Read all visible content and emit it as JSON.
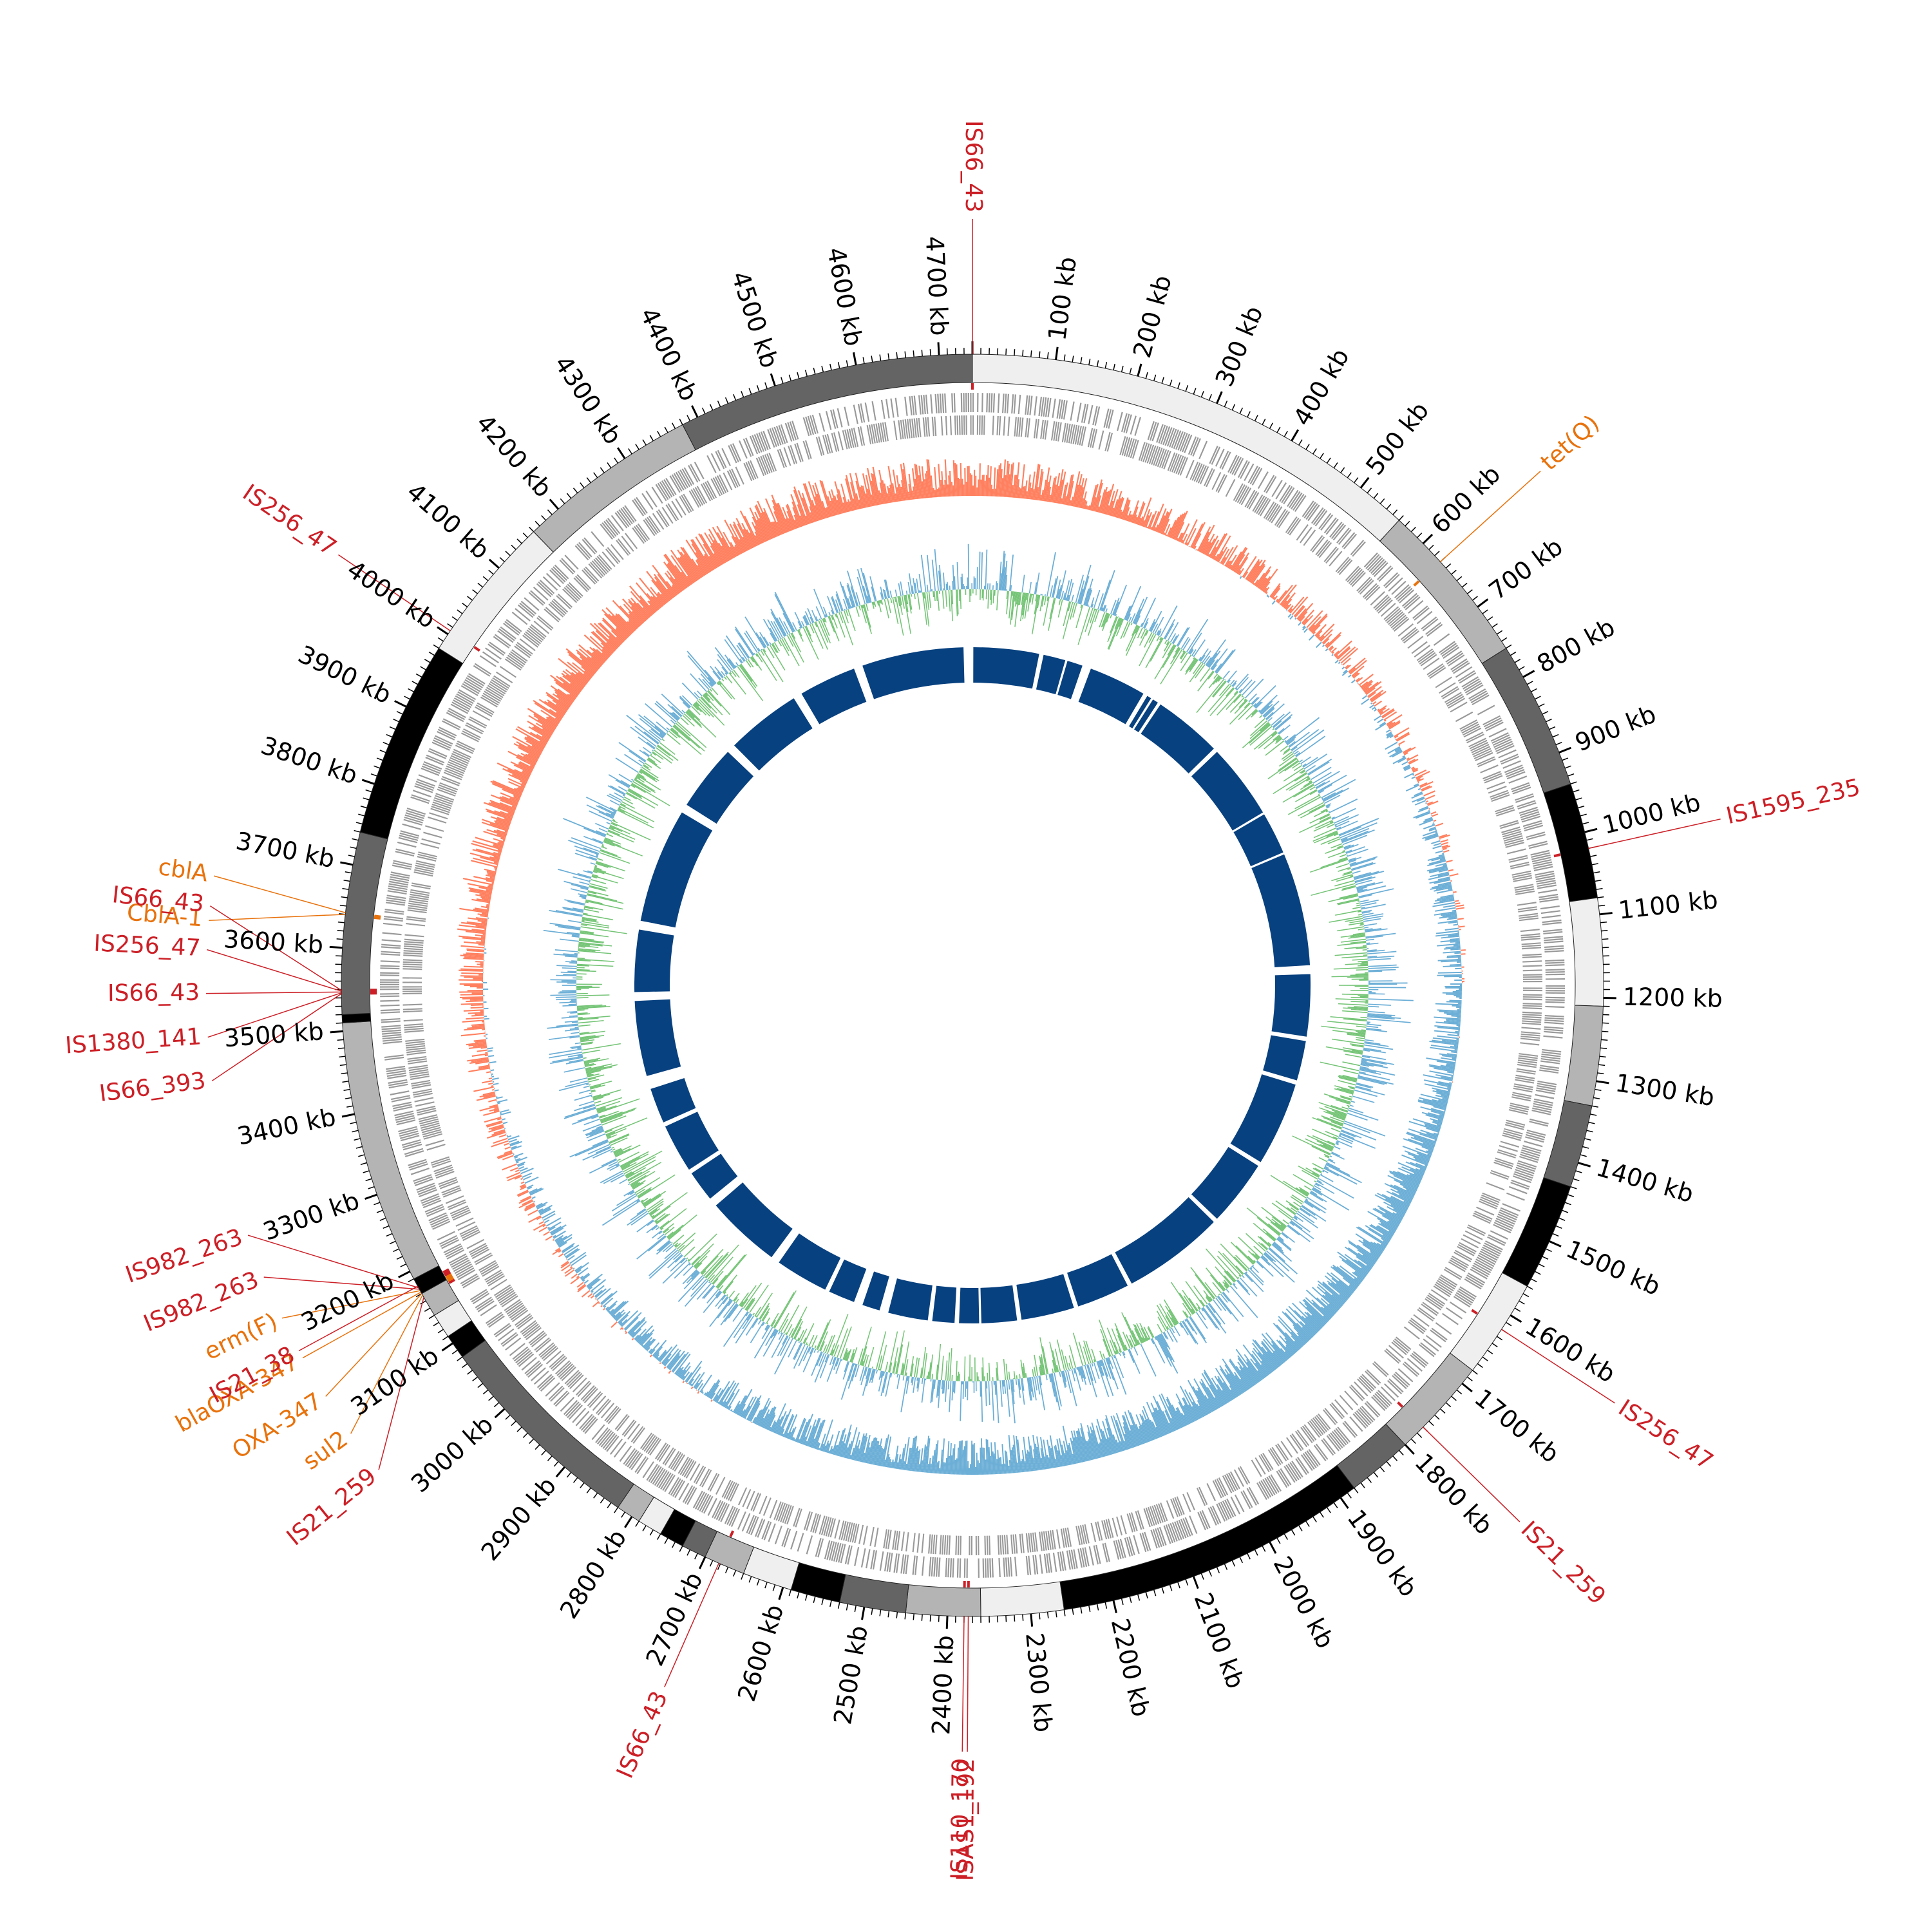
{
  "genome": {
    "total_kb": 4740,
    "unit": "kb"
  },
  "position_labels": [
    "100 kb",
    "200 kb",
    "300 kb",
    "400 kb",
    "500 kb",
    "600 kb",
    "700 kb",
    "800 kb",
    "900 kb",
    "1000 kb",
    "1100 kb",
    "1200 kb",
    "1300 kb",
    "1400 kb",
    "1500 kb",
    "1600 kb",
    "1700 kb",
    "1800 kb",
    "1900 kb",
    "2000 kb",
    "2100 kb",
    "2200 kb",
    "2300 kb",
    "2400 kb",
    "2500 kb",
    "2600 kb",
    "2700 kb",
    "2800 kb",
    "2900 kb",
    "3000 kb",
    "3100 kb",
    "3200 kb",
    "3300 kb",
    "3400 kb",
    "3500 kb",
    "3600 kb",
    "3700 kb",
    "3800 kb",
    "3900 kb",
    "4000 kb",
    "4100 kb",
    "4200 kb",
    "4300 kb",
    "4400 kb",
    "4500 kb",
    "4600 kb",
    "4700 kb"
  ],
  "position_values_kb": [
    100,
    200,
    300,
    400,
    500,
    600,
    700,
    800,
    900,
    1000,
    1100,
    1200,
    1300,
    1400,
    1500,
    1600,
    1700,
    1800,
    1900,
    2000,
    2100,
    2200,
    2300,
    2400,
    2500,
    2600,
    2700,
    2800,
    2900,
    3000,
    3100,
    3200,
    3300,
    3400,
    3500,
    3600,
    3700,
    3800,
    3900,
    4000,
    4100,
    4200,
    4300,
    4400,
    4500,
    4600,
    4700
  ],
  "contigs": [
    {
      "start": 0,
      "end": 560,
      "shade": "#efefef"
    },
    {
      "start": 560,
      "end": 760,
      "shade": "#b4b4b4"
    },
    {
      "start": 760,
      "end": 940,
      "shade": "#646464"
    },
    {
      "start": 940,
      "end": 1080,
      "shade": "#000000"
    },
    {
      "start": 1080,
      "end": 1210,
      "shade": "#efefef"
    },
    {
      "start": 1210,
      "end": 1330,
      "shade": "#b4b4b4"
    },
    {
      "start": 1330,
      "end": 1430,
      "shade": "#646464"
    },
    {
      "start": 1430,
      "end": 1560,
      "shade": "#000000"
    },
    {
      "start": 1560,
      "end": 1680,
      "shade": "#efefef"
    },
    {
      "start": 1680,
      "end": 1800,
      "shade": "#b4b4b4"
    },
    {
      "start": 1800,
      "end": 1880,
      "shade": "#646464"
    },
    {
      "start": 1880,
      "end": 2260,
      "shade": "#000000"
    },
    {
      "start": 2260,
      "end": 2360,
      "shade": "#efefef"
    },
    {
      "start": 2360,
      "end": 2450,
      "shade": "#b4b4b4"
    },
    {
      "start": 2450,
      "end": 2530,
      "shade": "#646464"
    },
    {
      "start": 2530,
      "end": 2590,
      "shade": "#000000"
    },
    {
      "start": 2590,
      "end": 2650,
      "shade": "#efefef"
    },
    {
      "start": 2650,
      "end": 2700,
      "shade": "#b4b4b4"
    },
    {
      "start": 2700,
      "end": 2730,
      "shade": "#646464"
    },
    {
      "start": 2730,
      "end": 2760,
      "shade": "#000000"
    },
    {
      "start": 2760,
      "end": 2790,
      "shade": "#efefef"
    },
    {
      "start": 2790,
      "end": 2820,
      "shade": "#b4b4b4"
    },
    {
      "start": 2820,
      "end": 3080,
      "shade": "#646464"
    },
    {
      "start": 3080,
      "end": 3110,
      "shade": "#000000"
    },
    {
      "start": 3110,
      "end": 3140,
      "shade": "#efefef"
    },
    {
      "start": 3140,
      "end": 3170,
      "shade": "#b4b4b4"
    },
    {
      "start": 3170,
      "end": 3190,
      "shade": "#000000"
    },
    {
      "start": 3190,
      "end": 3510,
      "shade": "#b4b4b4"
    },
    {
      "start": 3510,
      "end": 3520,
      "shade": "#000000"
    },
    {
      "start": 3520,
      "end": 3740,
      "shade": "#646464"
    },
    {
      "start": 3740,
      "end": 3980,
      "shade": "#000000"
    },
    {
      "start": 3980,
      "end": 4160,
      "shade": "#efefef"
    },
    {
      "start": 4160,
      "end": 4380,
      "shade": "#b4b4b4"
    },
    {
      "start": 4380,
      "end": 4740,
      "shade": "#646464"
    }
  ],
  "annotations": [
    {
      "label": "IS66_43",
      "kb": 4740,
      "kind": "is"
    },
    {
      "label": "tet(Q)",
      "kb": 630,
      "kind": "amr"
    },
    {
      "label": "IS1595_235",
      "kb": 1020,
      "kind": "is"
    },
    {
      "label": "IS256_47",
      "kb": 1620,
      "kind": "is"
    },
    {
      "label": "IS21_259",
      "kb": 1770,
      "kind": "is"
    },
    {
      "label": "ISAS1_192",
      "kb": 2375,
      "kind": "is"
    },
    {
      "label": "IS110_170",
      "kb": 2380,
      "kind": "is"
    },
    {
      "label": "IS66_43",
      "kb": 2682,
      "kind": "is"
    },
    {
      "label": "IS21_259",
      "kb": 3165,
      "kind": "is"
    },
    {
      "label": "sul2",
      "kb": 3168,
      "kind": "amr"
    },
    {
      "label": "OXA-347",
      "kb": 3170,
      "kind": "amr"
    },
    {
      "label": "blaOXA-347",
      "kb": 3172,
      "kind": "amr"
    },
    {
      "label": "erm(F)",
      "kb": 3174,
      "kind": "amr"
    },
    {
      "label": "IS982_263",
      "kb": 3176,
      "kind": "is"
    },
    {
      "label": "IS982_263",
      "kb": 3178,
      "kind": "is"
    },
    {
      "label": "IS21_38",
      "kb": 3180,
      "kind": "is"
    },
    {
      "label": "CblA-1",
      "kb": 3640,
      "kind": "amr"
    },
    {
      "label": "cblA",
      "kb": 3642,
      "kind": "amr"
    },
    {
      "label": "IS66_393",
      "kb": 3545,
      "kind": "is"
    },
    {
      "label": "IS1380_141",
      "kb": 3546,
      "kind": "is"
    },
    {
      "label": "IS66_43",
      "kb": 3547,
      "kind": "is"
    },
    {
      "label": "IS256_47",
      "kb": 3548,
      "kind": "is"
    },
    {
      "label": "IS66_43",
      "kb": 3549,
      "kind": "is"
    },
    {
      "label": "IS256_47",
      "kb": 4005,
      "kind": "is"
    }
  ],
  "tracks": {
    "gc_skew_pos_color": "#ff7f5e",
    "gc_skew_neg_color": "#6baed6",
    "gc_content_pos_color": "#74c476",
    "gc_content_neg_color": "#6baed6",
    "cds_color": "#999999",
    "homology_color": "#08417f"
  },
  "colors": {
    "is_element": "#cc1f26",
    "amr_gene": "#e8720c"
  },
  "homology_blocks": [
    [
      2,
      150
    ],
    [
      160,
      210
    ],
    [
      215,
      250
    ],
    [
      270,
      400
    ],
    [
      410,
      420
    ],
    [
      425,
      438
    ],
    [
      445,
      600
    ],
    [
      610,
      780
    ],
    [
      785,
      880
    ],
    [
      885,
      1140
    ],
    [
      1160,
      1300
    ],
    [
      1310,
      1400
    ],
    [
      1410,
      1600
    ],
    [
      1610,
      1760
    ],
    [
      1770,
      2000
    ],
    [
      2010,
      2130
    ],
    [
      2140,
      2260
    ],
    [
      2270,
      2350
    ],
    [
      2355,
      2400
    ],
    [
      2410,
      2460
    ],
    [
      2470,
      2560
    ],
    [
      2580,
      2620
    ],
    [
      2640,
      2700
    ],
    [
      2710,
      2830
    ],
    [
      2850,
      3020
    ],
    [
      3040,
      3110
    ],
    [
      3120,
      3230
    ],
    [
      3240,
      3320
    ],
    [
      3350,
      3520
    ],
    [
      3540,
      3680
    ],
    [
      3700,
      3960
    ],
    [
      3980,
      4130
    ],
    [
      4150,
      4320
    ],
    [
      4340,
      4470
    ],
    [
      4490,
      4720
    ]
  ]
}
